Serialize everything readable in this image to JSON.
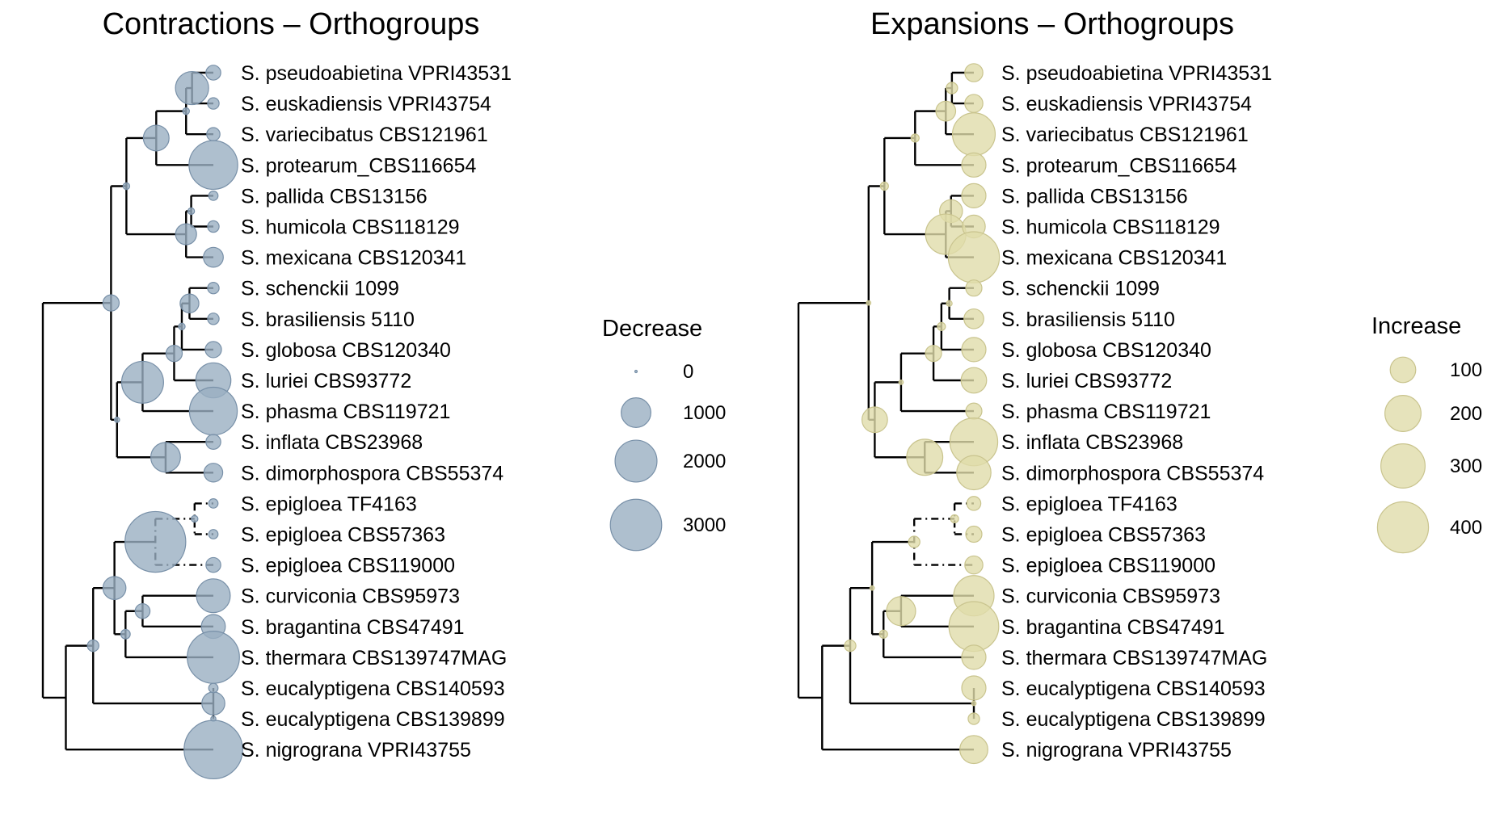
{
  "colors": {
    "contraction": "#9aafc2",
    "contraction_stroke": "#7890a8",
    "expansion": "#e0dcaa",
    "expansion_stroke": "#c9c48e",
    "branch": "#000000"
  },
  "chart_data": [
    {
      "type": "phylogenetic-tree-bubble",
      "title": "Contractions – Orthogroups",
      "legend": {
        "title": "Decrease",
        "placement": "right",
        "entries": [
          {
            "label": "0",
            "value": 0
          },
          {
            "label": "1000",
            "value": 1000
          },
          {
            "label": "2000",
            "value": 2000
          },
          {
            "label": "3000",
            "value": 3000
          }
        ]
      },
      "tips": [
        {
          "label": "S. pseudoabietina VPRI43531",
          "value": 250
        },
        {
          "label": "S. euskadiensis VPRI43754",
          "value": 150
        },
        {
          "label": "S. variecibatus CBS121961",
          "value": 200
        },
        {
          "label": "S. protearum_CBS116654",
          "value": 2700
        },
        {
          "label": "S. pallida CBS13156",
          "value": 100
        },
        {
          "label": "S. humicola CBS118129",
          "value": 150
        },
        {
          "label": "S. mexicana CBS120341",
          "value": 450
        },
        {
          "label": "S. schenckii 1099",
          "value": 150
        },
        {
          "label": "S. brasiliensis 5110",
          "value": 150
        },
        {
          "label": "S. globosa CBS120340",
          "value": 300
        },
        {
          "label": "S. luriei CBS93772",
          "value": 1400
        },
        {
          "label": "S. phasma CBS119721",
          "value": 2600
        },
        {
          "label": "S. inflata CBS23968",
          "value": 250
        },
        {
          "label": "S. dimorphospora CBS55374",
          "value": 400
        },
        {
          "label": "S. epigloea TF4163",
          "value": 100
        },
        {
          "label": "S. epigloea CBS57363",
          "value": 100
        },
        {
          "label": "S. epigloea CBS119000",
          "value": 250
        },
        {
          "label": "S. curviconia CBS95973",
          "value": 1300
        },
        {
          "label": "S. bragantina CBS47491",
          "value": 650
        },
        {
          "label": "S. thermara CBS139747MAG",
          "value": 3100
        },
        {
          "label": "S. eucalyptigena CBS140593",
          "value": 100
        },
        {
          "label": "S. eucalyptigena CBS139899",
          "value": 30
        },
        {
          "label": "S. nigrograna VPRI43755",
          "value": 3900
        }
      ],
      "internal_nodes": [
        {
          "clade": "pseudoabietina+euskadiensis",
          "value": 1250
        },
        {
          "clade": "pseudoabietina..variecibatus",
          "value": 50
        },
        {
          "clade": "pseudoabietina..protearum",
          "value": 750
        },
        {
          "clade": "pallida+humicola",
          "value": 50
        },
        {
          "clade": "pallida..mexicana",
          "value": 500
        },
        {
          "clade": "pseudoabietina..mexicana",
          "value": 50
        },
        {
          "clade": "schenckii+brasiliensis",
          "value": 400
        },
        {
          "clade": "schenckii..globosa",
          "value": 50
        },
        {
          "clade": "schenckii..luriei",
          "value": 300
        },
        {
          "clade": "schenckii..phasma",
          "value": 2000
        },
        {
          "clade": "inflata+dimorphospora",
          "value": 1000
        },
        {
          "clade": "schenckii..dimorphospora",
          "value": 30
        },
        {
          "clade": "pseudoabietina..dimorphospora",
          "value": 300
        },
        {
          "clade": "epigloea TF4163+CBS57363",
          "value": 50
        },
        {
          "clade": "epigloea (all)",
          "value": 4200
        },
        {
          "clade": "curviconia+bragantina",
          "value": 250
        },
        {
          "clade": "curviconia..thermara",
          "value": 100
        },
        {
          "clade": "epigloea..thermara",
          "value": 600
        },
        {
          "clade": "eucalyptigena pair",
          "value": 600
        },
        {
          "clade": "epigloea..eucalyptigena",
          "value": 150
        }
      ]
    },
    {
      "type": "phylogenetic-tree-bubble",
      "title": "Expansions – Orthogroups",
      "legend": {
        "title": "Increase",
        "placement": "right",
        "entries": [
          {
            "label": "100",
            "value": 100
          },
          {
            "label": "200",
            "value": 200
          },
          {
            "label": "300",
            "value": 300
          },
          {
            "label": "400",
            "value": 400
          }
        ]
      },
      "tips": [
        {
          "label": "S. pseudoabietina VPRI43531",
          "value": 50
        },
        {
          "label": "S. euskadiensis VPRI43754",
          "value": 50
        },
        {
          "label": "S. variecibatus CBS121961",
          "value": 280
        },
        {
          "label": "S. protearum_CBS116654",
          "value": 90
        },
        {
          "label": "S. pallida CBS13156",
          "value": 90
        },
        {
          "label": "S. humicola CBS118129",
          "value": 80
        },
        {
          "label": "S. mexicana CBS120341",
          "value": 400
        },
        {
          "label": "S. schenckii 1099",
          "value": 40
        },
        {
          "label": "S. brasiliensis 5110",
          "value": 60
        },
        {
          "label": "S. globosa CBS120340",
          "value": 90
        },
        {
          "label": "S. luriei CBS93772",
          "value": 100
        },
        {
          "label": "S. phasma CBS119721",
          "value": 40
        },
        {
          "label": "S. inflata CBS23968",
          "value": 350
        },
        {
          "label": "S. dimorphospora CBS55374",
          "value": 180
        },
        {
          "label": "S. epigloea TF4163",
          "value": 30
        },
        {
          "label": "S. epigloea CBS57363",
          "value": 40
        },
        {
          "label": "S. epigloea CBS119000",
          "value": 50
        },
        {
          "label": "S. curviconia CBS95973",
          "value": 250
        },
        {
          "label": "S. bragantina CBS47491",
          "value": 380
        },
        {
          "label": "S. thermara CBS139747MAG",
          "value": 90
        },
        {
          "label": "S. eucalyptigena CBS140593",
          "value": 90
        },
        {
          "label": "S. eucalyptigena CBS139899",
          "value": 20
        },
        {
          "label": "S. nigrograna VPRI43755",
          "value": 120
        }
      ],
      "internal_nodes": [
        {
          "clade": "pseudoabietina+euskadiensis",
          "value": 20
        },
        {
          "clade": "pseudoabietina..variecibatus",
          "value": 60
        },
        {
          "clade": "pseudoabietina..protearum",
          "value": 10
        },
        {
          "clade": "pallida+humicola",
          "value": 80
        },
        {
          "clade": "pallida..mexicana",
          "value": 250
        },
        {
          "clade": "pseudoabietina..mexicana",
          "value": 10
        },
        {
          "clade": "schenckii+brasiliensis",
          "value": 5
        },
        {
          "clade": "schenckii..globosa",
          "value": 10
        },
        {
          "clade": "schenckii..luriei",
          "value": 40
        },
        {
          "clade": "schenckii..phasma",
          "value": 3
        },
        {
          "clade": "inflata+dimorphospora",
          "value": 200
        },
        {
          "clade": "schenckii..dimorphospora",
          "value": 100
        },
        {
          "clade": "pseudoabietina..dimorphospora",
          "value": 3
        },
        {
          "clade": "epigloea TF4163+CBS57363",
          "value": 10
        },
        {
          "clade": "epigloea (all)",
          "value": 20
        },
        {
          "clade": "curviconia+bragantina",
          "value": 130
        },
        {
          "clade": "curviconia..thermara",
          "value": 10
        },
        {
          "clade": "epigloea..thermara",
          "value": 3
        },
        {
          "clade": "eucalyptigena pair",
          "value": 3
        },
        {
          "clade": "epigloea..eucalyptigena",
          "value": 20
        }
      ]
    }
  ]
}
